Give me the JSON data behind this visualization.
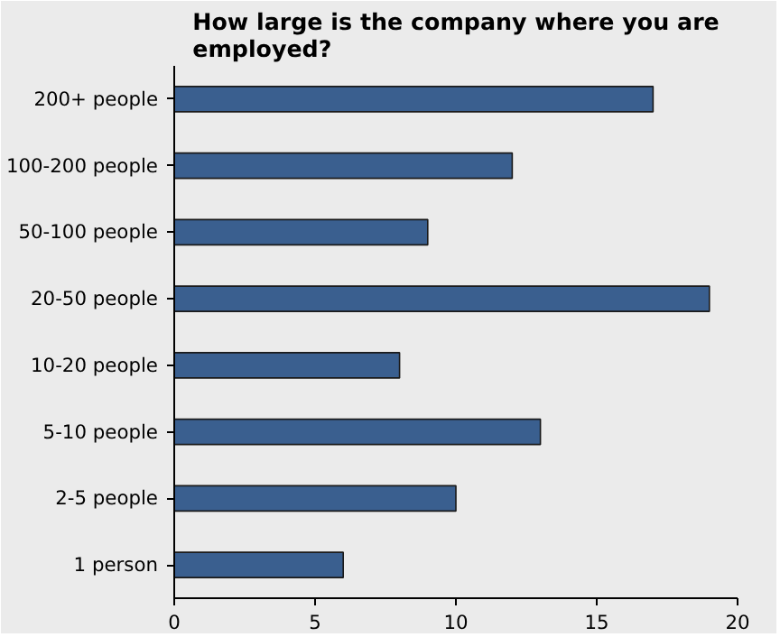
{
  "chart_data": {
    "type": "bar",
    "orientation": "horizontal",
    "title": "How large is the company where you are employed?",
    "categories": [
      "200+ people",
      "100-200 people",
      "50-100 people",
      "20-50 people",
      "10-20 people",
      "5-10 people",
      "2-5 people",
      "1 person"
    ],
    "values": [
      17,
      12,
      9,
      19,
      8,
      13,
      10,
      6
    ],
    "color": "#3a5f8f",
    "xlim": [
      0,
      20
    ],
    "xticks": [
      0,
      5,
      10,
      15,
      20
    ],
    "grid": false
  }
}
